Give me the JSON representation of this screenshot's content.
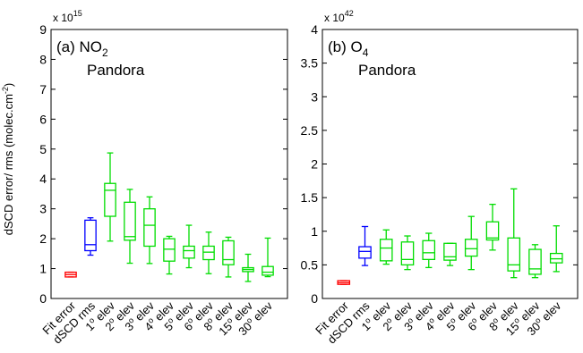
{
  "figure": {
    "ylabel": "dSCD error/ rms (molec.cm",
    "ylabel_sup": "-2",
    "ylabel_close": ")"
  },
  "colors": {
    "fit_error": "#ff0000",
    "dscd_rms": "#0000ff",
    "elevations": "#00dd00"
  },
  "chart_data": [
    {
      "type": "boxplot",
      "panel_label": "(a)",
      "species": "NO",
      "species_sub": "2",
      "instrument": "Pandora",
      "exponent_label": "x 10",
      "exponent_sup": "15",
      "ylim": [
        0,
        9
      ],
      "yticks": [
        "0",
        "1",
        "2",
        "3",
        "4",
        "5",
        "6",
        "7",
        "8",
        "9"
      ],
      "categories": [
        {
          "pre": "Fit error",
          "sup": "",
          "post": ""
        },
        {
          "pre": "dSCD rms",
          "sup": "",
          "post": ""
        },
        {
          "pre": "1",
          "sup": "o",
          "post": " elev"
        },
        {
          "pre": "2",
          "sup": "o",
          "post": " elev"
        },
        {
          "pre": "3",
          "sup": "o",
          "post": " elev"
        },
        {
          "pre": "4",
          "sup": "o",
          "post": " elev"
        },
        {
          "pre": "5",
          "sup": "o",
          "post": " elev"
        },
        {
          "pre": "6",
          "sup": "o",
          "post": " elev"
        },
        {
          "pre": "8",
          "sup": "o",
          "post": " elev"
        },
        {
          "pre": "15",
          "sup": "o",
          "post": " elev"
        },
        {
          "pre": "30",
          "sup": "o",
          "post": " elev"
        }
      ],
      "boxes": [
        {
          "min": 0.72,
          "q1": 0.72,
          "median": 0.8,
          "q3": 0.88,
          "max": 0.88
        },
        {
          "min": 1.45,
          "q1": 1.6,
          "median": 1.8,
          "q3": 2.62,
          "max": 2.7
        },
        {
          "min": 1.92,
          "q1": 2.75,
          "median": 3.62,
          "q3": 3.85,
          "max": 4.87
        },
        {
          "min": 1.18,
          "q1": 1.95,
          "median": 2.07,
          "q3": 3.22,
          "max": 3.65
        },
        {
          "min": 1.17,
          "q1": 1.75,
          "median": 2.45,
          "q3": 3.0,
          "max": 3.4
        },
        {
          "min": 0.82,
          "q1": 1.25,
          "median": 1.65,
          "q3": 2.0,
          "max": 2.08
        },
        {
          "min": 1.03,
          "q1": 1.35,
          "median": 1.6,
          "q3": 1.75,
          "max": 2.45
        },
        {
          "min": 0.83,
          "q1": 1.3,
          "median": 1.55,
          "q3": 1.75,
          "max": 2.22
        },
        {
          "min": 0.72,
          "q1": 1.13,
          "median": 1.3,
          "q3": 1.93,
          "max": 2.05
        },
        {
          "min": 0.57,
          "q1": 0.9,
          "median": 0.97,
          "q3": 1.03,
          "max": 1.48
        },
        {
          "min": 0.73,
          "q1": 0.78,
          "median": 0.88,
          "q3": 1.07,
          "max": 2.02
        }
      ]
    },
    {
      "type": "boxplot",
      "panel_label": "(b)",
      "species": "O",
      "species_sub": "4",
      "instrument": "Pandora",
      "exponent_label": "x 10",
      "exponent_sup": "42",
      "ylim": [
        0,
        4
      ],
      "yticks": [
        "0",
        "0.5",
        "1",
        "1.5",
        "2",
        "2.5",
        "3",
        "3.5",
        "4"
      ],
      "categories": [
        {
          "pre": "Fit error",
          "sup": "",
          "post": ""
        },
        {
          "pre": "dSCD rms",
          "sup": "",
          "post": ""
        },
        {
          "pre": "1",
          "sup": "o",
          "post": " elev"
        },
        {
          "pre": "2",
          "sup": "o",
          "post": " elev"
        },
        {
          "pre": "3",
          "sup": "o",
          "post": " elev"
        },
        {
          "pre": "4",
          "sup": "o",
          "post": " elev"
        },
        {
          "pre": "5",
          "sup": "o",
          "post": " elev"
        },
        {
          "pre": "6",
          "sup": "o",
          "post": " elev"
        },
        {
          "pre": "8",
          "sup": "o",
          "post": " elev"
        },
        {
          "pre": "15",
          "sup": "o",
          "post": " elev"
        },
        {
          "pre": "30",
          "sup": "o",
          "post": " elev"
        }
      ],
      "boxes": [
        {
          "min": 0.21,
          "q1": 0.21,
          "median": 0.235,
          "q3": 0.265,
          "max": 0.265
        },
        {
          "min": 0.49,
          "q1": 0.6,
          "median": 0.7,
          "q3": 0.77,
          "max": 1.07
        },
        {
          "min": 0.51,
          "q1": 0.56,
          "median": 0.75,
          "q3": 0.88,
          "max": 1.02
        },
        {
          "min": 0.43,
          "q1": 0.5,
          "median": 0.58,
          "q3": 0.84,
          "max": 0.93
        },
        {
          "min": 0.46,
          "q1": 0.58,
          "median": 0.68,
          "q3": 0.86,
          "max": 0.97
        },
        {
          "min": 0.49,
          "q1": 0.57,
          "median": 0.62,
          "q3": 0.82,
          "max": 0.82
        },
        {
          "min": 0.43,
          "q1": 0.63,
          "median": 0.74,
          "q3": 0.88,
          "max": 1.22
        },
        {
          "min": 0.72,
          "q1": 0.87,
          "median": 0.9,
          "q3": 1.14,
          "max": 1.4
        },
        {
          "min": 0.31,
          "q1": 0.41,
          "median": 0.5,
          "q3": 0.9,
          "max": 1.63
        },
        {
          "min": 0.31,
          "q1": 0.36,
          "median": 0.44,
          "q3": 0.73,
          "max": 0.8
        },
        {
          "min": 0.4,
          "q1": 0.53,
          "median": 0.59,
          "q3": 0.67,
          "max": 1.08
        }
      ]
    }
  ]
}
